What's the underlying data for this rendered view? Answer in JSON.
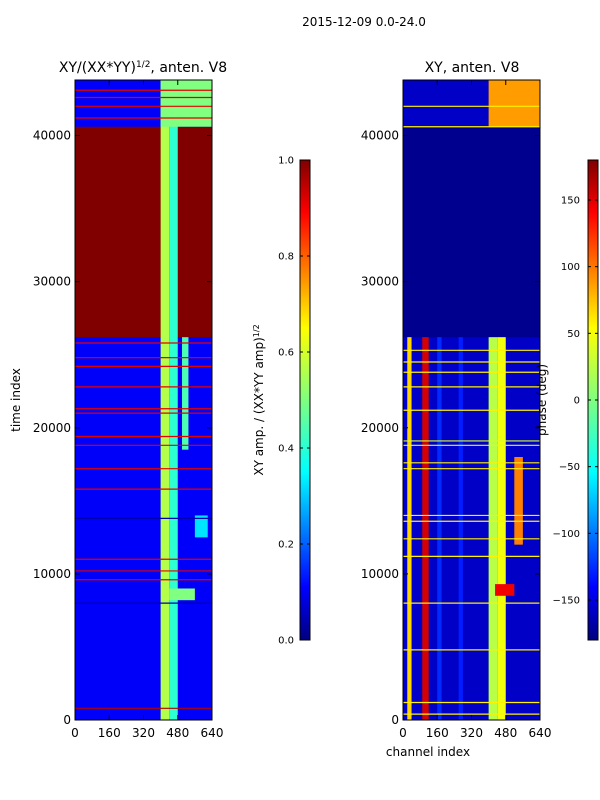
{
  "suptitle": "2015-12-09 0.0-24.0",
  "chart_data": [
    {
      "type": "heatmap",
      "title_prefix": "XY/(XX*YY)",
      "title_exponent": "1/2",
      "title_suffix": ", anten. V8",
      "xlabel": "",
      "ylabel": "time index",
      "xlim": [
        0,
        640
      ],
      "ylim": [
        0,
        43800
      ],
      "x_ticks": [
        0,
        160,
        320,
        480,
        640
      ],
      "y_ticks": [
        0,
        10000,
        20000,
        30000,
        40000
      ],
      "colormap": "jet",
      "colorbar": {
        "label_prefix": "XY amp. / (XX*YY amp)",
        "label_exponent": "1/2",
        "range": [
          0.0,
          1.0
        ],
        "ticks": [
          0.0,
          0.2,
          0.4,
          0.6,
          0.8,
          1.0
        ],
        "tick_labels": [
          "0.0",
          "0.2",
          "0.4",
          "0.6",
          "0.8",
          "1.0"
        ]
      },
      "background_value": 0.12,
      "features": [
        {
          "kind": "block",
          "x": [
            0,
            640
          ],
          "y": [
            26200,
            40600
          ],
          "value": 1.0
        },
        {
          "kind": "band",
          "x": [
            400,
            440
          ],
          "y": [
            0,
            43800
          ],
          "value": 0.55
        },
        {
          "kind": "band",
          "x": [
            440,
            480
          ],
          "y": [
            0,
            43800
          ],
          "value": 0.42
        },
        {
          "kind": "band",
          "x": [
            500,
            530
          ],
          "y": [
            18500,
            26200
          ],
          "value": 0.45
        },
        {
          "kind": "band",
          "x": [
            560,
            620
          ],
          "y": [
            12500,
            14000
          ],
          "value": 0.35
        },
        {
          "kind": "band",
          "x": [
            440,
            560
          ],
          "y": [
            8200,
            9000
          ],
          "value": 0.5
        },
        {
          "kind": "band",
          "x": [
            400,
            640
          ],
          "y": [
            40600,
            43800
          ],
          "value": 0.5
        }
      ],
      "lines": [
        {
          "y": 800,
          "value": 0.95
        },
        {
          "y": 8000,
          "value": 0.05
        },
        {
          "y": 9600,
          "value": 0.9
        },
        {
          "y": 10200,
          "value": 0.9
        },
        {
          "y": 11000,
          "value": 0.9
        },
        {
          "y": 13800,
          "value": 0.05
        },
        {
          "y": 15800,
          "value": 0.9
        },
        {
          "y": 17200,
          "value": 0.9
        },
        {
          "y": 18800,
          "value": 0.9
        },
        {
          "y": 19400,
          "value": 0.9
        },
        {
          "y": 21000,
          "value": 0.9
        },
        {
          "y": 21300,
          "value": 0.9
        },
        {
          "y": 22800,
          "value": 0.9
        },
        {
          "y": 24200,
          "value": 0.9
        },
        {
          "y": 24800,
          "value": 0.9
        },
        {
          "y": 25800,
          "value": 0.9
        },
        {
          "y": 41200,
          "value": 0.9
        },
        {
          "y": 42000,
          "value": 0.9
        },
        {
          "y": 42600,
          "value": 0.9
        },
        {
          "y": 43100,
          "value": 0.9
        }
      ]
    },
    {
      "type": "heatmap",
      "title": "XY, anten. V8",
      "xlabel": "channel index",
      "ylabel": "",
      "xlim": [
        0,
        640
      ],
      "ylim": [
        0,
        43800
      ],
      "x_ticks": [
        0,
        160,
        320,
        480,
        640
      ],
      "y_ticks": [
        0,
        10000,
        20000,
        30000,
        40000
      ],
      "colormap": "jet",
      "colorbar": {
        "label": "phase (deg)",
        "range": [
          -180,
          180
        ],
        "ticks": [
          -150,
          -100,
          -50,
          0,
          50,
          100,
          150
        ],
        "tick_labels": [
          "−150",
          "−100",
          "−50",
          "0",
          "50",
          "100",
          "150"
        ]
      },
      "background_value": -155,
      "features": [
        {
          "kind": "block",
          "x": [
            0,
            640
          ],
          "y": [
            26200,
            40600
          ],
          "value": -175
        },
        {
          "kind": "band",
          "x": [
            90,
            120
          ],
          "y": [
            0,
            26200
          ],
          "value": 150
        },
        {
          "kind": "band",
          "x": [
            20,
            40
          ],
          "y": [
            0,
            26200
          ],
          "value": 60
        },
        {
          "kind": "band",
          "x": [
            160,
            180
          ],
          "y": [
            0,
            26200
          ],
          "value": -120
        },
        {
          "kind": "band",
          "x": [
            260,
            280
          ],
          "y": [
            0,
            26200
          ],
          "value": -125
        },
        {
          "kind": "band",
          "x": [
            400,
            440
          ],
          "y": [
            0,
            26200
          ],
          "value": 20
        },
        {
          "kind": "band",
          "x": [
            440,
            480
          ],
          "y": [
            0,
            26200
          ],
          "value": 40
        },
        {
          "kind": "band",
          "x": [
            520,
            560
          ],
          "y": [
            12000,
            18000
          ],
          "value": 90
        },
        {
          "kind": "band",
          "x": [
            430,
            520
          ],
          "y": [
            8500,
            9300
          ],
          "value": 140
        },
        {
          "kind": "band",
          "x": [
            400,
            640
          ],
          "y": [
            40600,
            43800
          ],
          "value": 80
        }
      ],
      "lines": [
        {
          "y": 400,
          "value": 50
        },
        {
          "y": 1200,
          "value": 50
        },
        {
          "y": 4800,
          "value": 50
        },
        {
          "y": 8000,
          "value": 50
        },
        {
          "y": 11200,
          "value": 50
        },
        {
          "y": 12400,
          "value": 50
        },
        {
          "y": 13600,
          "value": 50
        },
        {
          "y": 14000,
          "value": 50
        },
        {
          "y": 17200,
          "value": 50
        },
        {
          "y": 17600,
          "value": 50
        },
        {
          "y": 18800,
          "value": 30
        },
        {
          "y": 19100,
          "value": 30
        },
        {
          "y": 21200,
          "value": 50
        },
        {
          "y": 22800,
          "value": 50
        },
        {
          "y": 23800,
          "value": 50
        },
        {
          "y": 24500,
          "value": 50
        },
        {
          "y": 25300,
          "value": 50
        },
        {
          "y": 40600,
          "value": 50
        },
        {
          "y": 42000,
          "value": 50
        }
      ]
    }
  ]
}
